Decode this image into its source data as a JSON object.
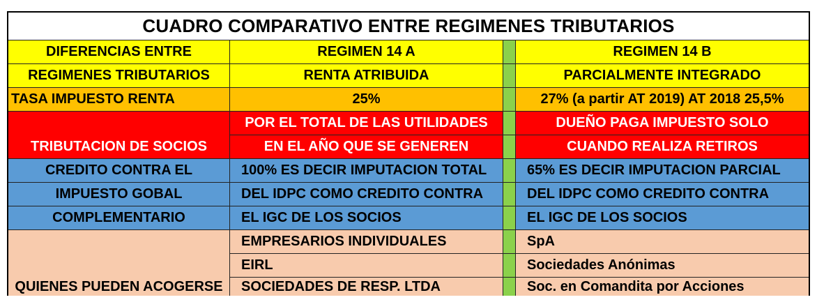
{
  "title": "CUADRO COMPARATIVO ENTRE REGIMENES TRIBUTARIOS",
  "header": {
    "col1": [
      "DIFERENCIAS ENTRE",
      "REGIMENES TRIBUTARIOS"
    ],
    "col2": [
      "REGIMEN 14 A",
      "RENTA ATRIBUIDA"
    ],
    "col4": [
      "REGIMEN 14 B",
      "PARCIALMENTE INTEGRADO"
    ]
  },
  "tasa": {
    "label": "TASA IMPUESTO RENTA",
    "a": "25%",
    "b": "27% (a partir AT 2019) AT 2018 25,5%"
  },
  "socios": {
    "label": "TRIBUTACION DE SOCIOS",
    "a": [
      "POR EL TOTAL DE LAS UTILIDADES",
      "EN EL AÑO QUE SE GENEREN"
    ],
    "b": [
      "DUEÑO PAGA IMPUESTO SOLO",
      "CUANDO REALIZA RETIROS"
    ]
  },
  "credito": {
    "label": [
      "CREDITO CONTRA EL",
      "IMPUESTO GOBAL",
      "COMPLEMENTARIO"
    ],
    "a": [
      "100% ES DECIR IMPUTACION TOTAL",
      "DEL IDPC COMO CREDITO CONTRA",
      "EL IGC DE LOS SOCIOS"
    ],
    "b": [
      "65% ES DECIR IMPUTACION PARCIAL",
      "DEL IDPC COMO CREDITO CONTRA",
      "EL IGC DE LOS SOCIOS"
    ]
  },
  "acogerse": {
    "label": "QUIENES PUEDEN ACOGERSE",
    "a": [
      "EMPRESARIOS INDIVIDUALES",
      "EIRL",
      "SOCIEDADES DE RESP. LTDA"
    ],
    "b": [
      "SpA",
      "Sociedades Anónimas",
      "Soc. en Comandita por Acciones"
    ]
  },
  "colors": {
    "yellow": "#ffff00",
    "orange": "#ffc000",
    "red": "#ff0000",
    "blue": "#5b9bd5",
    "peach": "#f8cbad",
    "separator_green": "#8bd14b"
  }
}
